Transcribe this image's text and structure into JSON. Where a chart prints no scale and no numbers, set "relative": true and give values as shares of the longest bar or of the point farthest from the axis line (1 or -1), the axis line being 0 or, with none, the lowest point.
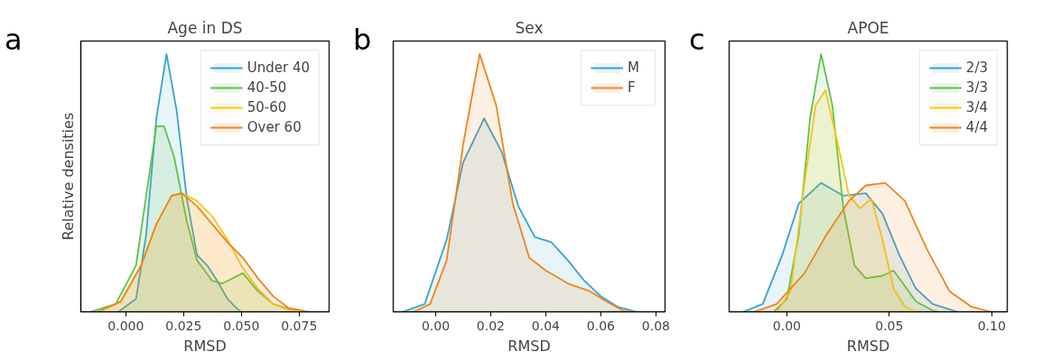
{
  "chart_data": [
    {
      "type": "area",
      "title": "Age in DS",
      "xlabel": "RMSD",
      "ylabel": "Relative densities",
      "annotations": [
        "a"
      ],
      "relative": true,
      "tick_labels": "x",
      "legend": "top right",
      "grid": false,
      "xlim": [
        -0.0195,
        0.088
      ],
      "xticks": [
        {
          "value": 0,
          "label": "0.000"
        },
        {
          "value": 0.025,
          "label": "0.025"
        },
        {
          "value": 0.05,
          "label": "0.050"
        },
        {
          "value": 0.075,
          "label": "0.075"
        }
      ],
      "series": [
        {
          "name": "Under 40",
          "color": "#3ba3c8",
          "x": [
            -0.0033,
            0.0044,
            0.0088,
            0.0132,
            0.0176,
            0.022,
            0.0264,
            0.0308,
            0.0352,
            0.0396,
            0.044,
            0.0484,
            0.05
          ],
          "values": [
            0,
            0.05,
            0.3,
            0.75,
            1,
            0.78,
            0.44,
            0.22,
            0.18,
            0.12,
            0.05,
            0.01,
            0
          ]
        },
        {
          "name": "40-50",
          "color": "#5cc24a",
          "x": [
            -0.0154,
            -0.0044,
            0.0044,
            0.0088,
            0.0132,
            0.0165,
            0.0209,
            0.0264,
            0.0308,
            0.0374,
            0.0418,
            0.0506,
            0.0572,
            0.0638,
            0.0726,
            0.078
          ],
          "values": [
            0,
            0.03,
            0.18,
            0.45,
            0.72,
            0.72,
            0.6,
            0.35,
            0.2,
            0.12,
            0.11,
            0.15,
            0.08,
            0.03,
            0.005,
            0
          ]
        },
        {
          "name": "50-60",
          "color": "#f5c518",
          "x": [
            -0.012,
            -0.0022,
            0.0066,
            0.0132,
            0.0198,
            0.0242,
            0.0308,
            0.0374,
            0.044,
            0.0506,
            0.0572,
            0.0638,
            0.0704,
            0.078
          ],
          "values": [
            0,
            0.04,
            0.18,
            0.34,
            0.45,
            0.46,
            0.43,
            0.37,
            0.28,
            0.17,
            0.09,
            0.03,
            0.008,
            0
          ]
        },
        {
          "name": "Over 60",
          "color": "#f0841c",
          "x": [
            -0.012,
            -0.0022,
            0.0066,
            0.0132,
            0.0198,
            0.0242,
            0.0308,
            0.0374,
            0.044,
            0.0506,
            0.0572,
            0.0638,
            0.0704,
            0.079
          ],
          "values": [
            0,
            0.04,
            0.18,
            0.34,
            0.45,
            0.46,
            0.41,
            0.34,
            0.27,
            0.21,
            0.13,
            0.06,
            0.015,
            0
          ]
        }
      ]
    },
    {
      "type": "area",
      "title": "Sex",
      "xlabel": "RMSD",
      "annotations": [
        "b"
      ],
      "relative": true,
      "tick_labels": "x",
      "legend": "top right",
      "grid": false,
      "xlim": [
        -0.0154,
        0.0833
      ],
      "xticks": [
        {
          "value": 0,
          "label": "0.00"
        },
        {
          "value": 0.02,
          "label": "0.02"
        },
        {
          "value": 0.04,
          "label": "0.04"
        },
        {
          "value": 0.06,
          "label": "0.06"
        },
        {
          "value": 0.08,
          "label": "0.08"
        }
      ],
      "series": [
        {
          "name": "M",
          "color": "#3ba3c8",
          "x": [
            -0.012,
            -0.004,
            0.004,
            0.01,
            0.0176,
            0.024,
            0.03,
            0.036,
            0.042,
            0.048,
            0.054,
            0.06,
            0.066,
            0.073
          ],
          "values": [
            0,
            0.03,
            0.28,
            0.58,
            0.75,
            0.62,
            0.41,
            0.29,
            0.27,
            0.2,
            0.12,
            0.06,
            0.02,
            0
          ]
        },
        {
          "name": "F",
          "color": "#f0841c",
          "x": [
            -0.008,
            -0.002,
            0.004,
            0.01,
            0.016,
            0.022,
            0.028,
            0.034,
            0.04,
            0.048,
            0.056,
            0.062,
            0.068,
            0.071
          ],
          "values": [
            0,
            0.03,
            0.2,
            0.65,
            1,
            0.8,
            0.42,
            0.21,
            0.16,
            0.11,
            0.08,
            0.04,
            0.005,
            0
          ]
        }
      ]
    },
    {
      "type": "area",
      "title": "APOE",
      "xlabel": "RMSD",
      "annotations": [
        "c"
      ],
      "relative": true,
      "tick_labels": "x",
      "legend": "top right",
      "grid": false,
      "xlim": [
        -0.0282,
        0.1076
      ],
      "xticks": [
        {
          "value": 0,
          "label": "0.00"
        },
        {
          "value": 0.05,
          "label": "0.05"
        },
        {
          "value": 0.1,
          "label": "0.10"
        }
      ],
      "series": [
        {
          "name": "2/3",
          "color": "#3ba3c8",
          "x": [
            -0.0214,
            -0.0118,
            -0.0023,
            0.0058,
            0.0167,
            0.0276,
            0.0385,
            0.0467,
            0.0549,
            0.063,
            0.0712,
            0.0833
          ],
          "values": [
            0,
            0.03,
            0.22,
            0.42,
            0.5,
            0.45,
            0.46,
            0.38,
            0.22,
            0.09,
            0.03,
            0
          ]
        },
        {
          "name": "3/3",
          "color": "#5cc24a",
          "x": [
            -0.0064,
            0,
            0.0058,
            0.0113,
            0.0167,
            0.0222,
            0.0276,
            0.033,
            0.0385,
            0.0467,
            0.0521,
            0.0576,
            0.063,
            0.0712,
            0.074
          ],
          "values": [
            0,
            0.05,
            0.3,
            0.75,
            1,
            0.8,
            0.4,
            0.18,
            0.13,
            0.14,
            0.16,
            0.1,
            0.04,
            0.005,
            0
          ]
        },
        {
          "name": "3/4",
          "color": "#f5c518",
          "x": [
            -0.005,
            0.0018,
            0.0086,
            0.014,
            0.0188,
            0.0249,
            0.0303,
            0.0358,
            0.0412,
            0.0467,
            0.0521,
            0.0576,
            0.063
          ],
          "values": [
            0,
            0.08,
            0.5,
            0.8,
            0.86,
            0.65,
            0.45,
            0.4,
            0.44,
            0.28,
            0.09,
            0.02,
            0
          ]
        },
        {
          "name": "4/4",
          "color": "#f0841c",
          "x": [
            -0.016,
            -0.005,
            0.0086,
            0.0194,
            0.0303,
            0.0385,
            0.048,
            0.0576,
            0.0685,
            0.0794,
            0.09,
            0.0997
          ],
          "values": [
            0,
            0.03,
            0.15,
            0.3,
            0.43,
            0.49,
            0.5,
            0.43,
            0.24,
            0.08,
            0.02,
            0
          ]
        }
      ]
    }
  ]
}
